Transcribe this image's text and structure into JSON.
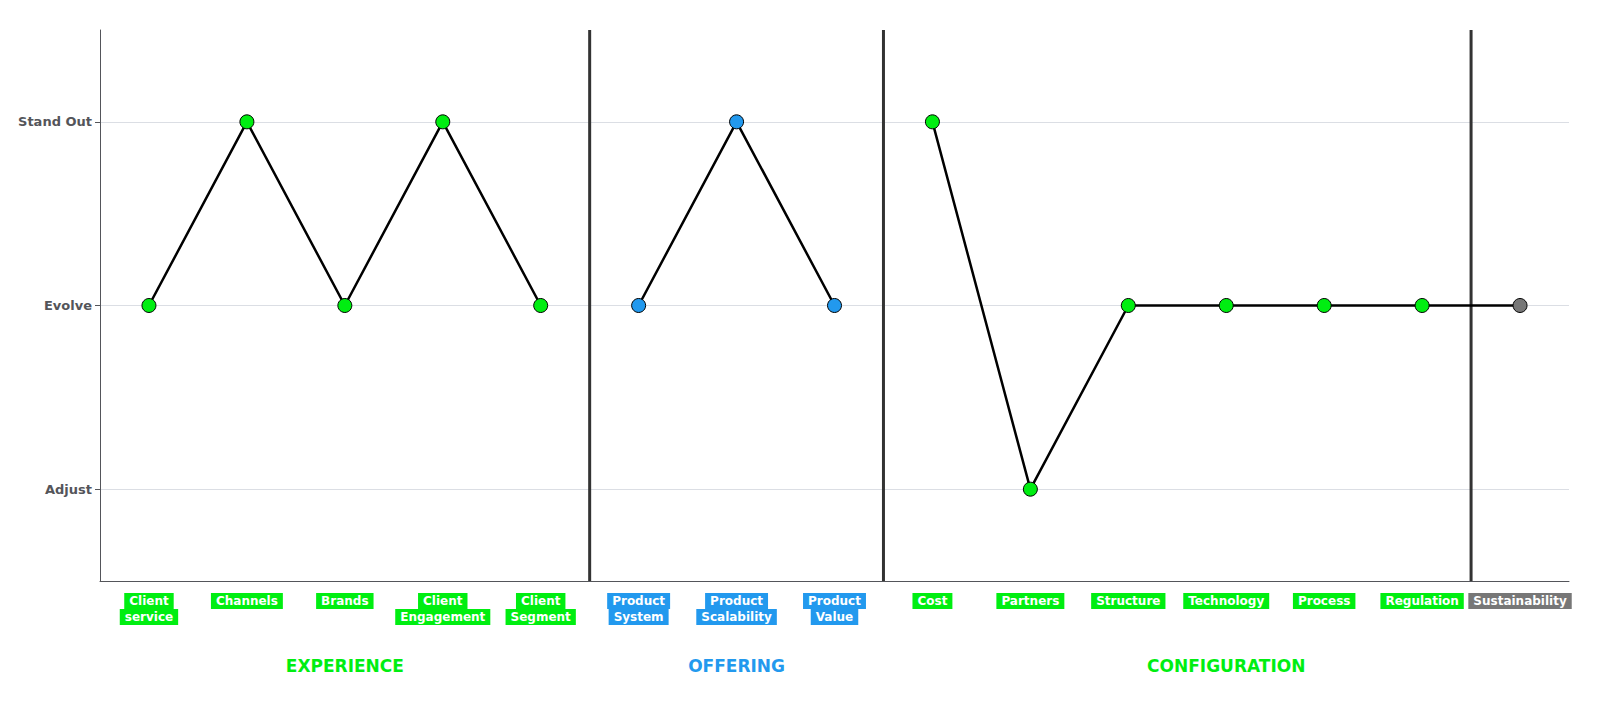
{
  "chart_data": {
    "type": "line",
    "categories": [
      "Client\nservice",
      "Channels",
      "Brands",
      "Client\nEngagement",
      "Client\nSegment",
      "Product\nSystem",
      "Product\nScalability",
      "Product\nValue",
      "Cost",
      "Partners",
      "Structure",
      "Technology",
      "Process",
      "Regulation",
      "Sustainability"
    ],
    "colors": [
      "#00ee11",
      "#00ee11",
      "#00ee11",
      "#00ee11",
      "#00ee11",
      "#2299ee",
      "#2299ee",
      "#2299ee",
      "#00ee11",
      "#00ee11",
      "#00ee11",
      "#00ee11",
      "#00ee11",
      "#00ee11",
      "#777777"
    ],
    "series": [
      {
        "color": "#000000",
        "values": [
          2,
          3,
          2,
          3,
          2,
          null,
          null,
          null,
          null,
          null,
          null,
          null,
          null,
          null,
          null
        ]
      },
      {
        "color": "#000000",
        "values": [
          null,
          null,
          null,
          null,
          null,
          2,
          3,
          2,
          null,
          null,
          null,
          null,
          null,
          null,
          null
        ]
      },
      {
        "color": "#000000",
        "values": [
          null,
          null,
          null,
          null,
          null,
          null,
          null,
          null,
          3,
          1,
          2,
          2,
          2,
          2,
          2
        ]
      }
    ],
    "ylim": [
      0.5,
      3.5
    ],
    "yticks": [
      {
        "value": 1,
        "label": "Adjust"
      },
      {
        "value": 2,
        "label": "Evolve"
      },
      {
        "value": 3,
        "label": "Stand Out"
      }
    ],
    "grid": true,
    "marker": "circle",
    "annotations": [
      {
        "text": "EXPERIENCE",
        "color": "#00ee11",
        "x": "Brands"
      },
      {
        "text": "OFFERING",
        "color": "#2299ee",
        "x": "Product\nScalability"
      },
      {
        "text": "CONFIGURATION",
        "color": "#00ee11",
        "x": "Technology"
      }
    ]
  }
}
